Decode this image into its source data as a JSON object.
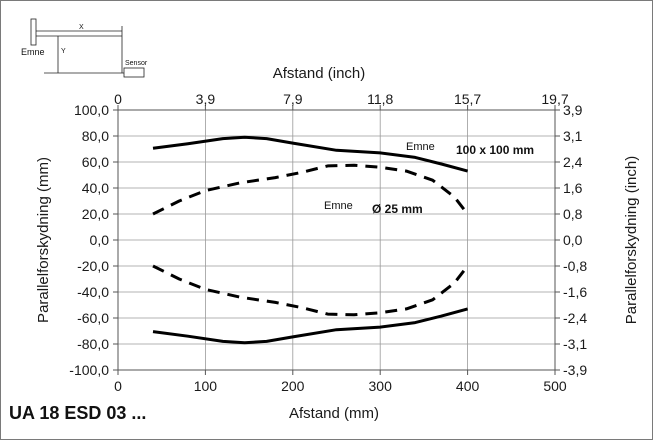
{
  "footer_title": "UA 18 ESD 03 ...",
  "diagram": {
    "object_label": "Emne",
    "sensor_label": "Sensor",
    "x_label": "X",
    "y_label": "Y"
  },
  "chart_data": {
    "type": "line",
    "xlabel_bottom": "Afstand (mm)",
    "xlabel_top": "Afstand (inch)",
    "ylabel_left": "Parallelforskydning (mm)",
    "ylabel_right": "Parallelforskydning (inch)",
    "xlim": [
      0,
      500
    ],
    "ylim": [
      -100,
      100
    ],
    "x_ticks": [
      0,
      100,
      200,
      300,
      400,
      500
    ],
    "x_tick_labels": [
      "0",
      "100",
      "200",
      "300",
      "400",
      "500"
    ],
    "x_top_tick_labels": [
      "0",
      "3,9",
      "7,9",
      "11,8",
      "15,7",
      "19,7"
    ],
    "y_ticks": [
      100,
      80,
      60,
      40,
      20,
      0,
      -20,
      -40,
      -60,
      -80,
      -100
    ],
    "y_tick_labels": [
      "100,0",
      "80,0",
      "60,0",
      "40,0",
      "20,0",
      "0,0",
      "-20,0",
      "-40,0",
      "-60,0",
      "-80,0",
      "-100,0"
    ],
    "y_right_tick_labels": [
      "3,9",
      "3,1",
      "2,4",
      "1,6",
      "0,8",
      "0,0",
      "-0,8",
      "-1,6",
      "-2,4",
      "-3,1",
      "-3,9"
    ],
    "grid": true,
    "series": [
      {
        "name": "100 x 100 mm",
        "label_prefix": "Emne",
        "style": "solid",
        "x": [
          40,
          80,
          120,
          145,
          170,
          200,
          250,
          300,
          340,
          370,
          400
        ],
        "upper": [
          70.5,
          74,
          78,
          79,
          78,
          74.5,
          69,
          67,
          63.5,
          58.5,
          53
        ],
        "lower": [
          -70.5,
          -74,
          -78,
          -79,
          -78,
          -74.5,
          -69,
          -67,
          -63.5,
          -58.5,
          -53
        ]
      },
      {
        "name": "Ø 25 mm",
        "label_prefix": "Emne",
        "style": "dashed",
        "x": [
          40,
          70,
          100,
          140,
          180,
          210,
          240,
          270,
          300,
          330,
          360,
          385,
          400
        ],
        "upper": [
          20,
          30,
          38,
          44,
          48,
          52,
          57,
          57.5,
          56,
          53,
          46,
          33,
          20
        ],
        "lower": [
          -20,
          -30,
          -38,
          -44,
          -48,
          -52,
          -57,
          -57.5,
          -56,
          -53,
          -46,
          -33,
          -20
        ]
      }
    ]
  }
}
